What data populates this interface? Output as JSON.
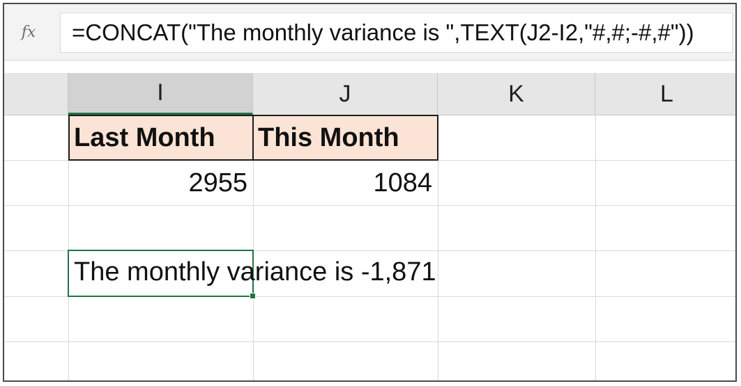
{
  "formula_bar": {
    "fx_label": "fx",
    "formula": "=CONCAT(\"The monthly variance is \",TEXT(J2-I2,\"#,#;-#,#\"))"
  },
  "columns": [
    {
      "label": "I",
      "selected": true
    },
    {
      "label": "J",
      "selected": false
    },
    {
      "label": "K",
      "selected": false
    },
    {
      "label": "L",
      "selected": false
    }
  ],
  "cells": {
    "I1": "Last Month",
    "J1": "This Month",
    "I2": "2955",
    "J2": "1084",
    "I4": "The monthly variance is -1,871"
  },
  "colors": {
    "header_fill": "#fbe4d5",
    "selection": "#217346"
  }
}
